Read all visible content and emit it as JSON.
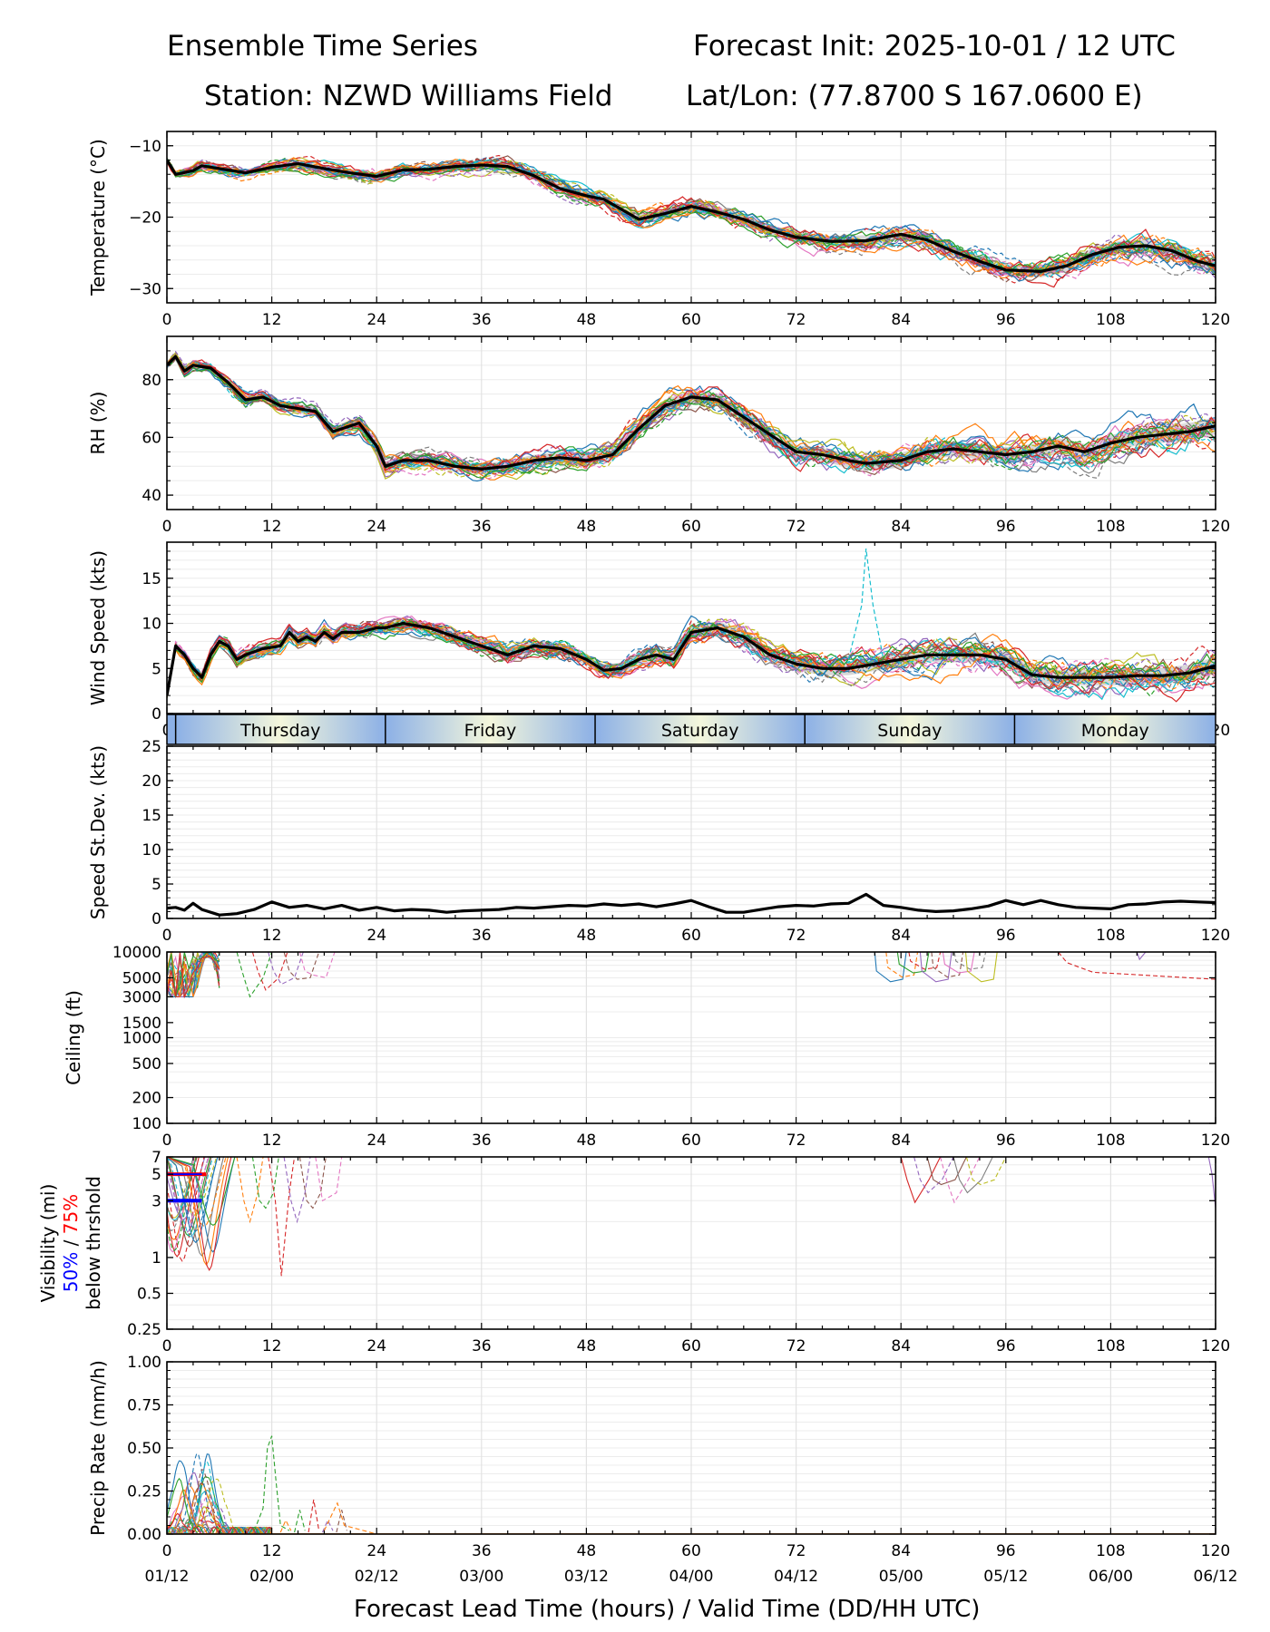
{
  "header": {
    "title": "Ensemble Time Series",
    "init": "Forecast Init: 2025-10-01 / 12 UTC",
    "station": "Station: NZWD Williams Field",
    "latlon": "Lat/Lon: (77.8700 S 167.0600 E)"
  },
  "x_axis": {
    "label": "Forecast Lead Time (hours) / Valid Time (DD/HH UTC)",
    "ticks": [
      0,
      12,
      24,
      36,
      48,
      60,
      72,
      84,
      96,
      108,
      120
    ],
    "valid_times": [
      "01/12",
      "02/00",
      "02/12",
      "03/00",
      "03/12",
      "04/00",
      "04/12",
      "05/00",
      "05/12",
      "06/00",
      "06/12"
    ]
  },
  "day_band": {
    "days": [
      {
        "label": "Thursday",
        "start": 1,
        "end": 25
      },
      {
        "label": "Friday",
        "start": 25,
        "end": 49
      },
      {
        "label": "Saturday",
        "start": 49,
        "end": 73
      },
      {
        "label": "Sunday",
        "start": 73,
        "end": 97
      },
      {
        "label": "Monday",
        "start": 97,
        "end": 120
      }
    ]
  },
  "colors": {
    "ensemble": [
      "#1f77b4",
      "#ff7f0e",
      "#2ca02c",
      "#d62728",
      "#9467bd",
      "#8c564b",
      "#e377c2",
      "#7f7f7f",
      "#bcbd22",
      "#17becf"
    ],
    "mean": "#000000",
    "spread": "#c8c8c8",
    "vis_50": "#0000ff",
    "vis_75": "#ff0000",
    "day_edge": "#8cb0e6",
    "day_center": "#f4f7dc"
  },
  "chart_data": [
    {
      "type": "line",
      "id": "temperature",
      "ylabel": "Temperature (°C)",
      "ylim": [
        -32,
        -8
      ],
      "yticks": [
        -10,
        -20,
        -30
      ],
      "members": 24,
      "mean": [
        [
          0,
          -12
        ],
        [
          1,
          -14
        ],
        [
          3,
          -13.5
        ],
        [
          4,
          -12.8
        ],
        [
          6,
          -13.2
        ],
        [
          9,
          -13.8
        ],
        [
          12,
          -13
        ],
        [
          15,
          -12.5
        ],
        [
          18,
          -13.2
        ],
        [
          21,
          -13.8
        ],
        [
          24,
          -14.3
        ],
        [
          27,
          -13.4
        ],
        [
          30,
          -13.3
        ],
        [
          33,
          -12.9
        ],
        [
          36,
          -12.7
        ],
        [
          39,
          -12.9
        ],
        [
          42,
          -14.2
        ],
        [
          45,
          -16
        ],
        [
          48,
          -17
        ],
        [
          50,
          -17.5
        ],
        [
          54,
          -20.3
        ],
        [
          57,
          -19.5
        ],
        [
          60,
          -18.5
        ],
        [
          63,
          -19.3
        ],
        [
          66,
          -20.3
        ],
        [
          69,
          -21.8
        ],
        [
          72,
          -22.8
        ],
        [
          76,
          -23.4
        ],
        [
          80,
          -23.3
        ],
        [
          84,
          -22.4
        ],
        [
          87,
          -23.2
        ],
        [
          90,
          -24.8
        ],
        [
          93,
          -26.2
        ],
        [
          96,
          -27.4
        ],
        [
          100,
          -27.6
        ],
        [
          103,
          -26.8
        ],
        [
          106,
          -25.2
        ],
        [
          109,
          -24.2
        ],
        [
          112,
          -24
        ],
        [
          115,
          -24.7
        ],
        [
          118,
          -26.2
        ],
        [
          120,
          -26.8
        ]
      ]
    },
    {
      "type": "line",
      "id": "rh",
      "ylabel": "RH (%)",
      "ylim": [
        35,
        95
      ],
      "yticks": [
        40,
        60,
        80
      ],
      "members": 24,
      "mean": [
        [
          0,
          85
        ],
        [
          1,
          88
        ],
        [
          2,
          83
        ],
        [
          3,
          85
        ],
        [
          5,
          84
        ],
        [
          7,
          79
        ],
        [
          9,
          73
        ],
        [
          11,
          74
        ],
        [
          13,
          71
        ],
        [
          15,
          70
        ],
        [
          17,
          69
        ],
        [
          19,
          62
        ],
        [
          21,
          64
        ],
        [
          22,
          65
        ],
        [
          24,
          57
        ],
        [
          25,
          50
        ],
        [
          27,
          52
        ],
        [
          30,
          52
        ],
        [
          33,
          50
        ],
        [
          36,
          49
        ],
        [
          39,
          50
        ],
        [
          42,
          52
        ],
        [
          45,
          53
        ],
        [
          48,
          52
        ],
        [
          51,
          54
        ],
        [
          54,
          63
        ],
        [
          57,
          71
        ],
        [
          60,
          74
        ],
        [
          63,
          73
        ],
        [
          66,
          67
        ],
        [
          69,
          61
        ],
        [
          72,
          55
        ],
        [
          75,
          54
        ],
        [
          78,
          52
        ],
        [
          80,
          51
        ],
        [
          84,
          52
        ],
        [
          87,
          55
        ],
        [
          90,
          56
        ],
        [
          93,
          55
        ],
        [
          96,
          54
        ],
        [
          99,
          55
        ],
        [
          102,
          57
        ],
        [
          105,
          55
        ],
        [
          108,
          58
        ],
        [
          111,
          60
        ],
        [
          114,
          61
        ],
        [
          117,
          62
        ],
        [
          120,
          64
        ]
      ]
    },
    {
      "type": "line",
      "id": "wind_speed",
      "ylabel": "Wind Speed (kts)",
      "ylim": [
        0,
        19
      ],
      "yticks": [
        0,
        5,
        10,
        15
      ],
      "members": 24,
      "mean": [
        [
          0,
          2
        ],
        [
          1,
          7.5
        ],
        [
          2,
          6.5
        ],
        [
          3,
          5
        ],
        [
          4,
          4
        ],
        [
          5,
          6.5
        ],
        [
          6,
          8
        ],
        [
          7,
          7.5
        ],
        [
          8,
          6
        ],
        [
          9,
          6.5
        ],
        [
          11,
          7.2
        ],
        [
          13,
          7.5
        ],
        [
          14,
          9
        ],
        [
          15,
          8
        ],
        [
          16,
          8.5
        ],
        [
          17,
          8
        ],
        [
          18,
          9
        ],
        [
          19,
          8.3
        ],
        [
          20,
          9
        ],
        [
          22,
          9
        ],
        [
          24,
          9.5
        ],
        [
          25,
          9.5
        ],
        [
          27,
          10
        ],
        [
          30,
          9.5
        ],
        [
          33,
          8.5
        ],
        [
          36,
          7.5
        ],
        [
          39,
          6.5
        ],
        [
          42,
          7.5
        ],
        [
          45,
          7.2
        ],
        [
          48,
          6
        ],
        [
          50,
          4.8
        ],
        [
          52,
          5
        ],
        [
          54,
          6
        ],
        [
          56,
          6.5
        ],
        [
          58,
          6
        ],
        [
          60,
          9
        ],
        [
          63,
          9.5
        ],
        [
          66,
          8.5
        ],
        [
          69,
          6.5
        ],
        [
          72,
          5.5
        ],
        [
          75,
          5
        ],
        [
          78,
          5
        ],
        [
          81,
          5.5
        ],
        [
          84,
          6
        ],
        [
          87,
          6.5
        ],
        [
          90,
          6.5
        ],
        [
          93,
          6.5
        ],
        [
          96,
          6
        ],
        [
          99,
          4.3
        ],
        [
          102,
          4
        ],
        [
          105,
          4
        ],
        [
          108,
          4
        ],
        [
          111,
          4.2
        ],
        [
          114,
          4.2
        ],
        [
          117,
          4.5
        ],
        [
          120,
          5.3
        ]
      ]
    },
    {
      "type": "line",
      "id": "speed_stdev",
      "ylabel": "Speed St.Dev. (kts)",
      "ylim": [
        0,
        25
      ],
      "yticks": [
        0,
        5,
        10,
        15,
        20,
        25
      ],
      "members": 0,
      "mean": [
        [
          0,
          1.5
        ],
        [
          1,
          1.6
        ],
        [
          2,
          1.2
        ],
        [
          3,
          2.2
        ],
        [
          4,
          1.3
        ],
        [
          6,
          0.5
        ],
        [
          8,
          0.7
        ],
        [
          10,
          1.3
        ],
        [
          12,
          2.4
        ],
        [
          14,
          1.6
        ],
        [
          16,
          1.9
        ],
        [
          18,
          1.4
        ],
        [
          20,
          1.9
        ],
        [
          22,
          1.2
        ],
        [
          24,
          1.6
        ],
        [
          26,
          1.1
        ],
        [
          28,
          1.3
        ],
        [
          30,
          1.2
        ],
        [
          32,
          0.9
        ],
        [
          34,
          1.1
        ],
        [
          36,
          1.2
        ],
        [
          38,
          1.3
        ],
        [
          40,
          1.6
        ],
        [
          42,
          1.5
        ],
        [
          44,
          1.7
        ],
        [
          46,
          1.9
        ],
        [
          48,
          1.8
        ],
        [
          50,
          2.1
        ],
        [
          52,
          1.9
        ],
        [
          54,
          2.1
        ],
        [
          56,
          1.7
        ],
        [
          58,
          2.1
        ],
        [
          60,
          2.6
        ],
        [
          62,
          1.7
        ],
        [
          64,
          0.9
        ],
        [
          66,
          0.9
        ],
        [
          68,
          1.3
        ],
        [
          70,
          1.7
        ],
        [
          72,
          1.9
        ],
        [
          74,
          1.8
        ],
        [
          76,
          2.1
        ],
        [
          78,
          2.2
        ],
        [
          80,
          3.5
        ],
        [
          82,
          1.9
        ],
        [
          84,
          1.6
        ],
        [
          86,
          1.2
        ],
        [
          88,
          1
        ],
        [
          90,
          1.1
        ],
        [
          92,
          1.4
        ],
        [
          94,
          1.8
        ],
        [
          96,
          2.6
        ],
        [
          98,
          2
        ],
        [
          100,
          2.6
        ],
        [
          102,
          2
        ],
        [
          104,
          1.6
        ],
        [
          106,
          1.5
        ],
        [
          108,
          1.4
        ],
        [
          110,
          2
        ],
        [
          112,
          2.1
        ],
        [
          114,
          2.4
        ],
        [
          116,
          2.5
        ],
        [
          118,
          2.4
        ],
        [
          120,
          2.3
        ]
      ]
    },
    {
      "type": "line",
      "id": "ceiling",
      "ylabel": "Ceiling (ft)",
      "ylim": [
        100,
        10000
      ],
      "yscale": "log",
      "yticks": [
        100,
        200,
        500,
        1000,
        1500,
        3000,
        5000,
        10000
      ],
      "members": 24
    },
    {
      "type": "line",
      "id": "visibility",
      "ylabel": "Visibility (mi)",
      "ylabel_50": "50%",
      "ylabel_sep": " / ",
      "ylabel_75": "75%",
      "ylabel_2": "below thrshold",
      "ylim": [
        0.25,
        7
      ],
      "yscale": "log",
      "yticks": [
        0.25,
        0.5,
        1,
        3,
        5,
        7
      ],
      "threshold_75": {
        "y": 5,
        "x_start": 0,
        "x_end": 4.5
      },
      "threshold_50": {
        "y": 3,
        "x_start": 0,
        "x_end": 4
      },
      "members": 24
    },
    {
      "type": "line",
      "id": "precip",
      "ylabel": "Precip Rate (mm/h)",
      "ylim": [
        0,
        1
      ],
      "yticks": [
        "0.00",
        "0.25",
        "0.50",
        "0.75",
        "1.00"
      ],
      "members": 24
    }
  ]
}
